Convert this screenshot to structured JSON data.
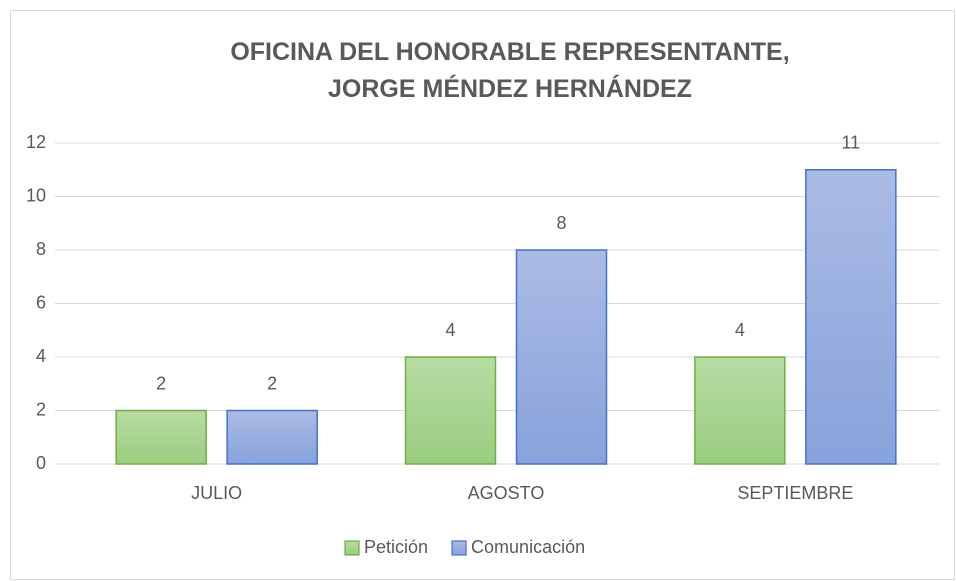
{
  "chart_data": {
    "type": "bar",
    "title": "OFICINA DEL HONORABLE REPRESENTANTE, JORGE MÉNDEZ HERNÁNDEZ",
    "categories": [
      "JULIO",
      "AGOSTO",
      "SEPTIEMBRE"
    ],
    "series": [
      {
        "name": "Petición",
        "color": "#70ad47",
        "values": [
          2,
          4,
          4
        ]
      },
      {
        "name": "Comunicación",
        "color": "#4472c4",
        "values": [
          2,
          8,
          11
        ]
      }
    ],
    "ylim": [
      0,
      12
    ],
    "yticks": [
      0,
      2,
      4,
      6,
      8,
      10,
      12
    ],
    "grid": true,
    "legend": "bottom"
  }
}
